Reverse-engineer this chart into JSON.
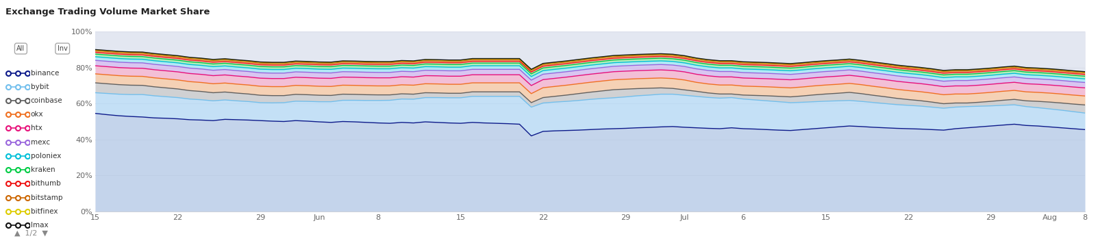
{
  "title": "Exchange Trading Volume Market Share",
  "exchanges": [
    "binance",
    "bybit",
    "coinbase",
    "okx",
    "htx",
    "mexc",
    "poloniex",
    "kraken",
    "bithumb",
    "bitstamp",
    "bitfinex",
    "lmax"
  ],
  "colors": {
    "binance": "#0d1a8a",
    "bybit": "#72bfed",
    "coinbase": "#606060",
    "okx": "#f07020",
    "htx": "#e8107a",
    "mexc": "#9966dd",
    "poloniex": "#00c0d8",
    "kraken": "#00cc44",
    "bithumb": "#ee1111",
    "bitstamp": "#cc6600",
    "bitfinex": "#ddcc00",
    "lmax": "#111111"
  },
  "fill_colors": {
    "binance": "#b8cce8",
    "bybit": "#b8dcf8",
    "coinbase": "#c8c8c8",
    "okx": "#fac8a0",
    "htx": "#f8b0cc",
    "mexc": "#d4b8f0",
    "poloniex": "#a0e8f8",
    "kraken": "#a0f0a8",
    "bithumb": "#f8a8a8",
    "bitstamp": "#f0c888",
    "bitfinex": "#f8f0a0",
    "lmax": "#d8d8d8"
  },
  "x_tick_labels": [
    "15",
    "22",
    "29",
    "Jun",
    "8",
    "15",
    "22",
    "29",
    "Jul",
    "6",
    "15",
    "22",
    "29",
    "Aug",
    "8"
  ],
  "plot_bg": "#e8ecf4",
  "fig_bg": "#ffffff",
  "n_points": 85,
  "binance_values": [
    54.5,
    53.8,
    53.2,
    52.8,
    52.5,
    52.0,
    51.8,
    51.5,
    51.0,
    50.8,
    50.5,
    51.2,
    51.0,
    50.8,
    50.5,
    50.2,
    50.0,
    50.5,
    50.2,
    49.8,
    49.5,
    50.0,
    49.8,
    49.5,
    49.2,
    49.0,
    49.5,
    49.2,
    49.8,
    49.5,
    49.2,
    49.0,
    49.5,
    49.2,
    49.0,
    48.8,
    48.5,
    42.0,
    44.5,
    44.8,
    45.0,
    45.2,
    45.5,
    45.8,
    46.0,
    46.2,
    46.5,
    46.7,
    47.0,
    47.2,
    46.8,
    46.5,
    46.2,
    46.0,
    46.5,
    46.0,
    45.8,
    45.5,
    45.2,
    45.0,
    45.5,
    46.0,
    46.5,
    47.0,
    47.5,
    47.2,
    46.8,
    46.5,
    46.2,
    46.0,
    45.8,
    45.5,
    45.2,
    46.0,
    46.5,
    47.0,
    47.5,
    48.0,
    48.5,
    47.8,
    47.5,
    47.0,
    46.5,
    46.0,
    45.5
  ],
  "bybit_values": [
    11.5,
    11.8,
    12.0,
    12.2,
    12.5,
    12.3,
    12.0,
    11.8,
    11.5,
    11.3,
    11.0,
    10.8,
    10.5,
    10.3,
    10.0,
    10.2,
    10.5,
    10.8,
    11.0,
    11.2,
    11.5,
    11.8,
    12.0,
    12.2,
    12.5,
    12.8,
    13.0,
    13.2,
    13.5,
    13.8,
    14.0,
    14.2,
    14.5,
    14.8,
    15.0,
    15.2,
    15.5,
    16.0,
    15.8,
    16.0,
    16.2,
    16.5,
    16.8,
    17.0,
    17.2,
    17.5,
    17.8,
    18.0,
    18.2,
    18.0,
    17.8,
    17.5,
    17.2,
    17.0,
    16.8,
    16.5,
    16.2,
    16.0,
    15.8,
    15.5,
    15.2,
    15.0,
    14.8,
    14.5,
    14.2,
    14.0,
    13.8,
    13.5,
    13.2,
    13.0,
    12.8,
    12.5,
    12.2,
    12.0,
    11.8,
    11.5,
    11.2,
    11.0,
    10.8,
    10.5,
    10.2,
    10.0,
    9.8,
    9.5,
    9.2
  ],
  "coinbase_values": [
    5.5,
    5.4,
    5.3,
    5.2,
    5.1,
    5.0,
    4.9,
    4.8,
    4.7,
    4.6,
    4.5,
    4.4,
    4.3,
    4.2,
    4.1,
    4.0,
    3.9,
    3.8,
    3.7,
    3.6,
    3.5,
    3.4,
    3.3,
    3.2,
    3.1,
    3.0,
    2.9,
    2.8,
    2.7,
    2.6,
    2.5,
    2.5,
    2.5,
    2.5,
    2.5,
    2.5,
    2.5,
    2.5,
    3.0,
    3.2,
    3.5,
    3.8,
    4.0,
    4.2,
    4.5,
    4.3,
    4.0,
    3.8,
    3.5,
    3.2,
    3.0,
    2.8,
    2.5,
    2.3,
    2.0,
    2.2,
    2.5,
    2.8,
    3.0,
    3.2,
    3.5,
    3.8,
    4.0,
    4.2,
    4.5,
    4.3,
    4.0,
    3.8,
    3.5,
    3.2,
    3.0,
    2.8,
    2.5,
    2.3,
    2.0,
    2.2,
    2.5,
    2.8,
    3.0,
    3.2,
    3.5,
    3.8,
    4.0,
    4.2,
    4.5
  ],
  "okx_values": [
    5.0,
    5.0,
    5.0,
    5.0,
    5.0,
    5.0,
    5.0,
    5.0,
    5.0,
    5.0,
    5.0,
    5.0,
    5.0,
    5.0,
    5.0,
    5.0,
    5.0,
    5.0,
    5.0,
    5.0,
    5.0,
    5.0,
    5.0,
    5.0,
    5.0,
    5.0,
    5.0,
    5.0,
    5.0,
    5.0,
    5.0,
    5.0,
    5.0,
    5.0,
    5.0,
    5.0,
    5.0,
    5.0,
    5.5,
    5.5,
    5.5,
    5.5,
    5.5,
    5.5,
    5.5,
    5.5,
    5.5,
    5.5,
    5.5,
    5.5,
    5.5,
    5.0,
    5.0,
    5.0,
    5.0,
    5.0,
    5.0,
    5.0,
    5.0,
    5.0,
    5.0,
    5.0,
    5.0,
    5.0,
    5.0,
    5.0,
    5.0,
    5.0,
    5.0,
    5.0,
    5.0,
    5.0,
    5.0,
    5.0,
    5.0,
    5.0,
    5.0,
    5.0,
    5.0,
    5.0,
    5.0,
    5.0,
    5.0,
    5.0,
    5.0
  ],
  "htx_values": [
    4.5,
    4.5,
    4.5,
    4.5,
    4.5,
    4.5,
    4.5,
    4.5,
    4.5,
    4.5,
    4.5,
    4.5,
    4.5,
    4.5,
    4.5,
    4.5,
    4.5,
    4.5,
    4.5,
    4.5,
    4.5,
    4.5,
    4.5,
    4.5,
    4.5,
    4.5,
    4.5,
    4.5,
    4.5,
    4.5,
    4.5,
    4.5,
    4.5,
    4.5,
    4.5,
    4.5,
    4.5,
    4.5,
    4.5,
    4.5,
    4.5,
    4.5,
    4.5,
    4.5,
    4.5,
    4.5,
    4.5,
    4.5,
    4.5,
    4.5,
    4.5,
    4.5,
    4.5,
    4.5,
    4.5,
    4.5,
    4.5,
    4.5,
    4.5,
    4.5,
    4.5,
    4.5,
    4.5,
    4.5,
    4.5,
    4.5,
    4.5,
    4.5,
    4.5,
    4.5,
    4.5,
    4.5,
    4.5,
    4.5,
    4.5,
    4.5,
    4.5,
    4.5,
    4.5,
    4.5,
    4.5,
    4.5,
    4.5,
    4.5,
    4.5
  ],
  "mexc_values": [
    3.0,
    3.0,
    3.0,
    3.0,
    3.0,
    3.0,
    3.0,
    3.0,
    3.0,
    3.0,
    3.0,
    3.0,
    3.0,
    3.0,
    3.0,
    3.0,
    3.0,
    3.0,
    3.0,
    3.0,
    3.0,
    3.0,
    3.0,
    3.0,
    3.0,
    3.0,
    3.0,
    3.0,
    3.0,
    3.0,
    3.0,
    3.0,
    3.0,
    3.0,
    3.0,
    3.0,
    3.0,
    3.0,
    3.0,
    3.0,
    3.0,
    3.0,
    3.0,
    3.0,
    3.0,
    3.0,
    3.0,
    3.0,
    3.0,
    3.0,
    3.0,
    3.0,
    3.0,
    3.0,
    3.0,
    3.0,
    3.0,
    3.0,
    3.0,
    3.0,
    3.0,
    3.0,
    3.0,
    3.0,
    3.0,
    3.0,
    3.0,
    3.0,
    3.0,
    3.0,
    3.0,
    3.0,
    3.0,
    3.0,
    3.0,
    3.0,
    3.0,
    3.0,
    3.0,
    3.0,
    3.0,
    3.0,
    3.0,
    3.0,
    3.0
  ],
  "poloniex_values": [
    2.0,
    2.0,
    2.0,
    2.0,
    2.0,
    2.0,
    2.0,
    2.0,
    2.0,
    2.0,
    2.0,
    2.0,
    2.0,
    2.0,
    2.0,
    2.0,
    2.0,
    2.0,
    2.0,
    2.0,
    2.0,
    2.0,
    2.0,
    2.0,
    2.0,
    2.0,
    2.0,
    2.0,
    2.0,
    2.0,
    2.0,
    2.0,
    2.0,
    2.0,
    2.0,
    2.0,
    2.0,
    2.0,
    2.0,
    2.0,
    2.0,
    2.0,
    2.0,
    2.0,
    2.0,
    2.0,
    2.0,
    2.0,
    2.0,
    2.0,
    2.0,
    2.0,
    2.0,
    2.0,
    2.0,
    2.0,
    2.0,
    2.0,
    2.0,
    2.0,
    2.0,
    2.0,
    2.0,
    2.0,
    2.0,
    2.0,
    2.0,
    2.0,
    2.0,
    2.0,
    2.0,
    2.0,
    2.0,
    2.0,
    2.0,
    2.0,
    2.0,
    2.0,
    2.0,
    2.0,
    2.0,
    2.0,
    2.0,
    2.0,
    2.0
  ],
  "kraken_values": [
    1.5,
    1.5,
    1.5,
    1.5,
    1.5,
    1.5,
    1.5,
    1.5,
    1.5,
    1.5,
    1.5,
    1.5,
    1.5,
    1.5,
    1.5,
    1.5,
    1.5,
    1.5,
    1.5,
    1.5,
    1.5,
    1.5,
    1.5,
    1.5,
    1.5,
    1.5,
    1.5,
    1.5,
    1.5,
    1.5,
    1.5,
    1.5,
    1.5,
    1.5,
    1.5,
    1.5,
    1.5,
    1.5,
    1.5,
    1.5,
    1.5,
    1.5,
    1.5,
    1.5,
    1.5,
    1.5,
    1.5,
    1.5,
    1.5,
    1.5,
    1.5,
    1.5,
    1.5,
    1.5,
    1.5,
    1.5,
    1.5,
    1.5,
    1.5,
    1.5,
    1.5,
    1.5,
    1.5,
    1.5,
    1.5,
    1.5,
    1.5,
    1.5,
    1.5,
    1.5,
    1.5,
    1.5,
    1.5,
    1.5,
    1.5,
    1.5,
    1.5,
    1.5,
    1.5,
    1.5,
    1.5,
    1.5,
    1.5,
    1.5,
    1.5
  ],
  "bithumb_values": [
    1.0,
    1.0,
    1.0,
    1.0,
    1.0,
    1.0,
    1.0,
    1.0,
    1.0,
    1.0,
    1.0,
    1.0,
    1.0,
    1.0,
    1.0,
    1.0,
    1.0,
    1.0,
    1.0,
    1.0,
    1.0,
    1.0,
    1.0,
    1.0,
    1.0,
    1.0,
    1.0,
    1.0,
    1.0,
    1.0,
    1.0,
    1.0,
    1.0,
    1.0,
    1.0,
    1.0,
    1.0,
    1.0,
    1.0,
    1.0,
    1.0,
    1.0,
    1.0,
    1.0,
    1.0,
    1.0,
    1.0,
    1.0,
    1.0,
    1.0,
    1.0,
    1.0,
    1.0,
    1.0,
    1.0,
    1.0,
    1.0,
    1.0,
    1.0,
    1.0,
    1.0,
    1.0,
    1.0,
    1.0,
    1.0,
    1.0,
    1.0,
    1.0,
    1.0,
    1.0,
    1.0,
    1.0,
    1.0,
    1.0,
    1.0,
    1.0,
    1.0,
    1.0,
    1.0,
    1.0,
    1.0,
    1.0,
    1.0,
    1.0,
    1.0
  ],
  "bitstamp_values": [
    0.8,
    0.8,
    0.8,
    0.8,
    0.8,
    0.8,
    0.8,
    0.8,
    0.8,
    0.8,
    0.8,
    0.8,
    0.8,
    0.8,
    0.8,
    0.8,
    0.8,
    0.8,
    0.8,
    0.8,
    0.8,
    0.8,
    0.8,
    0.8,
    0.8,
    0.8,
    0.8,
    0.8,
    0.8,
    0.8,
    0.8,
    0.8,
    0.8,
    0.8,
    0.8,
    0.8,
    0.8,
    0.8,
    0.8,
    0.8,
    0.8,
    0.8,
    0.8,
    0.8,
    0.8,
    0.8,
    0.8,
    0.8,
    0.8,
    0.8,
    0.8,
    0.8,
    0.8,
    0.8,
    0.8,
    0.8,
    0.8,
    0.8,
    0.8,
    0.8,
    0.8,
    0.8,
    0.8,
    0.8,
    0.8,
    0.8,
    0.8,
    0.8,
    0.8,
    0.8,
    0.8,
    0.8,
    0.8,
    0.8,
    0.8,
    0.8,
    0.8,
    0.8,
    0.8,
    0.8,
    0.8,
    0.8,
    0.8,
    0.8,
    0.8
  ],
  "bitfinex_values": [
    0.5,
    0.5,
    0.5,
    0.5,
    0.5,
    0.5,
    0.5,
    0.5,
    0.5,
    0.5,
    0.5,
    0.5,
    0.5,
    0.5,
    0.5,
    0.5,
    0.5,
    0.5,
    0.5,
    0.5,
    0.5,
    0.5,
    0.5,
    0.5,
    0.5,
    0.5,
    0.5,
    0.5,
    0.5,
    0.5,
    0.5,
    0.5,
    0.5,
    0.5,
    0.5,
    0.5,
    0.5,
    0.5,
    0.5,
    0.5,
    0.5,
    0.5,
    0.5,
    0.5,
    0.5,
    0.5,
    0.5,
    0.5,
    0.5,
    0.5,
    0.5,
    0.5,
    0.5,
    0.5,
    0.5,
    0.5,
    0.5,
    0.5,
    0.5,
    0.5,
    0.5,
    0.5,
    0.5,
    0.5,
    0.5,
    0.5,
    0.5,
    0.5,
    0.5,
    0.5,
    0.5,
    0.5,
    0.5,
    0.5,
    0.5,
    0.5,
    0.5,
    0.5,
    0.5,
    0.5,
    0.5,
    0.5,
    0.5,
    0.5,
    0.5
  ],
  "lmax_values": [
    0.2,
    0.2,
    0.2,
    0.2,
    0.2,
    0.2,
    0.2,
    0.2,
    0.2,
    0.2,
    0.2,
    0.2,
    0.2,
    0.2,
    0.2,
    0.2,
    0.2,
    0.2,
    0.2,
    0.2,
    0.2,
    0.2,
    0.2,
    0.2,
    0.2,
    0.2,
    0.2,
    0.2,
    0.2,
    0.2,
    0.2,
    0.2,
    0.2,
    0.2,
    0.2,
    0.2,
    0.2,
    0.2,
    0.2,
    0.2,
    0.2,
    0.2,
    0.2,
    0.2,
    0.2,
    0.2,
    0.2,
    0.2,
    0.2,
    0.2,
    0.2,
    0.2,
    0.2,
    0.2,
    0.2,
    0.2,
    0.2,
    0.2,
    0.2,
    0.2,
    0.2,
    0.2,
    0.2,
    0.2,
    0.2,
    0.2,
    0.2,
    0.2,
    0.2,
    0.2,
    0.2,
    0.2,
    0.2,
    0.2,
    0.2,
    0.2,
    0.2,
    0.2,
    0.2,
    0.2,
    0.2,
    0.2,
    0.2,
    0.2,
    0.2
  ]
}
